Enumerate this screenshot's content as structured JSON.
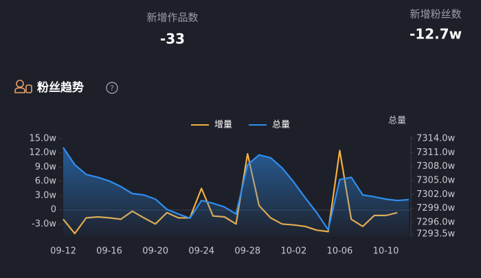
{
  "stats": [
    {
      "label": "新增作品数",
      "value": "-33"
    },
    {
      "label": "新增粉丝数",
      "value": "-12.7w"
    }
  ],
  "section": {
    "title": "粉丝趋势",
    "help_icon": "?"
  },
  "chart_data": {
    "type": "line",
    "categories": [
      "09-12",
      null,
      null,
      null,
      "09-16",
      null,
      null,
      null,
      "09-20",
      null,
      null,
      null,
      "09-24",
      null,
      null,
      null,
      "09-28",
      null,
      null,
      null,
      "10-02",
      null,
      null,
      null,
      "10-06",
      null,
      null,
      null,
      "10-10",
      null,
      null
    ],
    "series": [
      {
        "name": "增量",
        "color": "#f5b041",
        "values": [
          -2,
          -5,
          -1.7,
          -1.5,
          -1.7,
          -2,
          -0.3,
          -1.7,
          -3,
          -0.6,
          -1.7,
          -1.7,
          4.5,
          -1.3,
          -1.5,
          -3,
          11.8,
          0.9,
          -1.7,
          -3,
          -3.2,
          -3.5,
          -4.3,
          -4.6,
          12.5,
          -2,
          -3.5,
          -1.2,
          -1.2,
          -0.6,
          null
        ]
      },
      {
        "name": "总量",
        "color": "#2e8ff0",
        "axis": "y2",
        "values": [
          7312.1,
          7308.4,
          7306.3,
          7305.7,
          7304.9,
          7303.7,
          7302.2,
          7301.9,
          7301,
          7298.8,
          7297.8,
          7296.9,
          7300.7,
          7300.1,
          7299.3,
          7297.8,
          7308.4,
          7310.5,
          7309.9,
          7307.7,
          7304.7,
          7301.3,
          7298.1,
          7294.4,
          7305.2,
          7305.7,
          7301.9,
          7301.5,
          7301,
          7300.7,
          7300.9
        ]
      }
    ],
    "y2_label": "总量",
    "ylim": [
      -5.7,
      15
    ],
    "yticks": [
      {
        "value": 15,
        "label": "15.0w"
      },
      {
        "value": 12,
        "label": "12.0w"
      },
      {
        "value": 9,
        "label": "9.0w"
      },
      {
        "value": 6,
        "label": "6.0w"
      },
      {
        "value": 3,
        "label": "3.0w"
      },
      0,
      {
        "value": -3,
        "label": "-3.0w"
      }
    ],
    "y2lim": [
      7292.9,
      7314
    ],
    "y2ticks": [
      {
        "value": 7314,
        "label": "7314.0w"
      },
      {
        "value": 7311,
        "label": "7311.0w"
      },
      {
        "value": 7308,
        "label": "7308.0w"
      },
      {
        "value": 7305,
        "label": "7305.0w"
      },
      {
        "value": 7302,
        "label": "7302.0w"
      },
      {
        "value": 7299,
        "label": "7299.0w"
      },
      {
        "value": 7296,
        "label": "7296.0w"
      },
      {
        "value": 7293.5,
        "label": "7293.5w"
      }
    ],
    "grid": false,
    "legend": "top"
  }
}
